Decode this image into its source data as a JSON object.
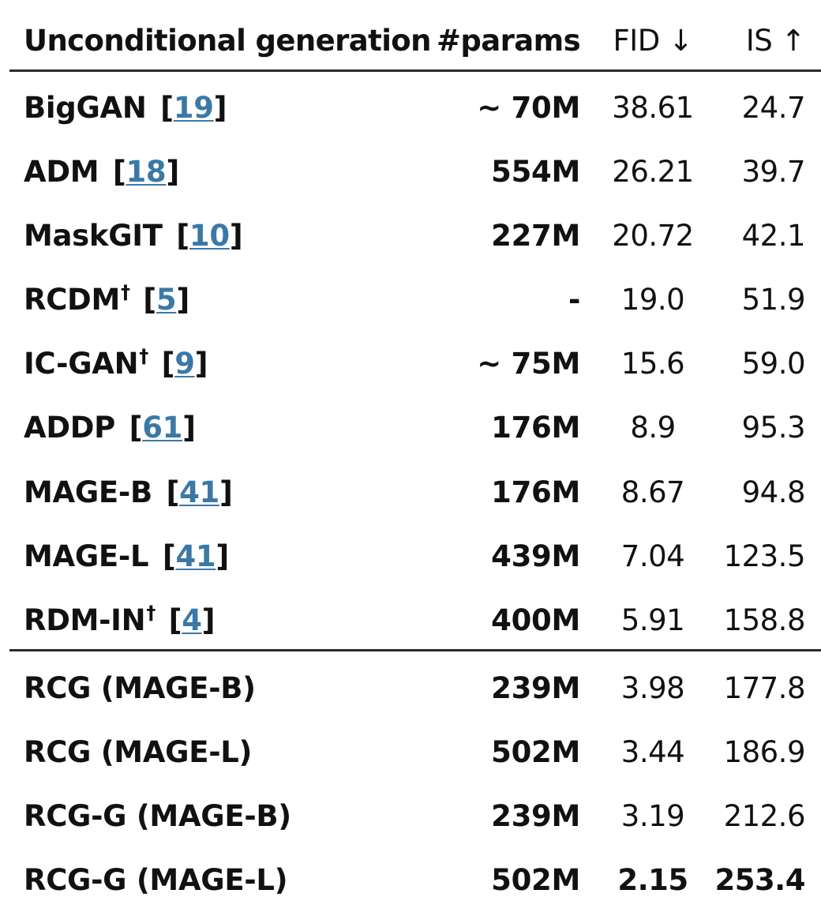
{
  "table": {
    "header": {
      "method": "Unconditional generation",
      "params": "#params",
      "fid": "FID ↓",
      "is": "IS ↑"
    },
    "baselines": [
      {
        "name": "BigGAN",
        "dagger": "",
        "ref": "19",
        "params": "~ 70M",
        "fid": "38.61",
        "is": "24.7"
      },
      {
        "name": "ADM",
        "dagger": "",
        "ref": "18",
        "params": "554M",
        "fid": "26.21",
        "is": "39.7"
      },
      {
        "name": "MaskGIT",
        "dagger": "",
        "ref": "10",
        "params": "227M",
        "fid": "20.72",
        "is": "42.1"
      },
      {
        "name": "RCDM",
        "dagger": "†",
        "ref": "5",
        "params": "-",
        "fid": "19.0",
        "is": "51.9"
      },
      {
        "name": "IC-GAN",
        "dagger": "†",
        "ref": "9",
        "params": "~ 75M",
        "fid": "15.6",
        "is": "59.0"
      },
      {
        "name": "ADDP",
        "dagger": "",
        "ref": "61",
        "params": "176M",
        "fid": "8.9",
        "is": "95.3"
      },
      {
        "name": "MAGE-B",
        "dagger": "",
        "ref": "41",
        "params": "176M",
        "fid": "8.67",
        "is": "94.8"
      },
      {
        "name": "MAGE-L",
        "dagger": "",
        "ref": "41",
        "params": "439M",
        "fid": "7.04",
        "is": "123.5"
      },
      {
        "name": "RDM-IN",
        "dagger": "†",
        "ref": "4",
        "params": "400M",
        "fid": "5.91",
        "is": "158.8"
      }
    ],
    "ours": [
      {
        "name": "RCG (MAGE-B)",
        "params": "239M",
        "fid": "3.98",
        "is": "177.8"
      },
      {
        "name": "RCG (MAGE-L)",
        "params": "502M",
        "fid": "3.44",
        "is": "186.9"
      },
      {
        "name": "RCG-G (MAGE-B)",
        "params": "239M",
        "fid": "3.19",
        "is": "212.6"
      },
      {
        "name": "RCG-G (MAGE-L)",
        "params": "502M",
        "fid": "2.15",
        "is": "253.4"
      }
    ]
  },
  "colors": {
    "text": "#111111",
    "link": "#3c78a6",
    "rule": "#2b2b2b"
  }
}
